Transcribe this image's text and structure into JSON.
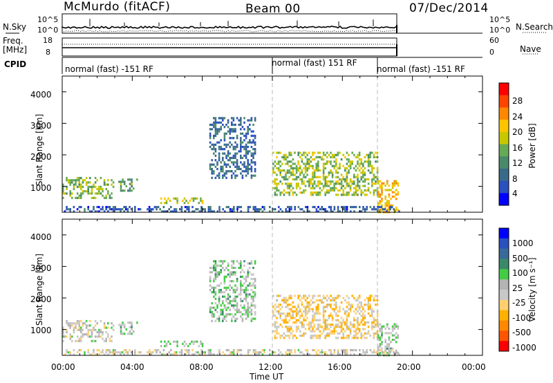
{
  "header": {
    "station": "McMurdo (fitACF)",
    "beam": "Beam 00",
    "date": "07/Dec/2014"
  },
  "aux": {
    "nsky_label": "N.Sky",
    "nsky_ticks": [
      "10^5",
      "10^0"
    ],
    "nsearch_label": "N.Search",
    "nsearch_ticks": [
      "10^5",
      "10^0"
    ],
    "freq_label": "Freq.",
    "freq_unit": "[MHz]",
    "freq_ticks": [
      "18",
      "8"
    ],
    "nave_label": "Nave",
    "nave_ticks": [
      "60",
      "0"
    ],
    "cpid_label": "CPID",
    "cpid_segments": [
      {
        "text": "normal (fast) -151 RF",
        "start_hour": 0
      },
      {
        "text": "normal (fast) 151 RF",
        "start_hour": 12
      },
      {
        "text": "normal (fast) -151 RF",
        "start_hour": 18
      }
    ]
  },
  "chart_data": [
    {
      "type": "heatmap",
      "title": "",
      "xlabel": "",
      "ylabel": "Slant Range [km]",
      "x_range_hours": [
        0,
        24
      ],
      "ylim": [
        180,
        4500
      ],
      "y_ticks": [
        "1000",
        "2000",
        "3000",
        "4000"
      ],
      "colorbar": {
        "label": "Power [dB]",
        "ticks": [
          "28",
          "24",
          "20",
          "16",
          "12",
          "8",
          "4"
        ],
        "range": [
          0,
          30
        ],
        "colors": [
          "#0000ff",
          "#2a52be",
          "#3a6a8a",
          "#4a8a6a",
          "#66aa55",
          "#c8c800",
          "#ffc400",
          "#ff8800",
          "#ff4400",
          "#ff0000"
        ]
      },
      "echo_regions": [
        {
          "t0": 0.0,
          "t1": 2.9,
          "r0": 650,
          "r1": 1300,
          "value": 14
        },
        {
          "t0": 3.2,
          "t1": 4.3,
          "r0": 850,
          "r1": 1250,
          "value": 12
        },
        {
          "t0": 5.6,
          "t1": 8.0,
          "r0": 500,
          "r1": 650,
          "value": 16
        },
        {
          "t0": 8.4,
          "t1": 11.0,
          "r0": 1300,
          "r1": 3200,
          "value": 7
        },
        {
          "t0": 12.0,
          "t1": 18.0,
          "r0": 700,
          "r1": 2100,
          "value": 15
        },
        {
          "t0": 18.0,
          "t1": 19.2,
          "r0": 200,
          "r1": 1200,
          "value": 20
        },
        {
          "t0": 0.0,
          "t1": 19.2,
          "r0": 180,
          "r1": 380,
          "value": 6
        }
      ]
    },
    {
      "type": "heatmap",
      "title": "",
      "xlabel": "Time UT",
      "ylabel": "Slant Range [km]",
      "x_range_hours": [
        0,
        24
      ],
      "ylim": [
        180,
        4500
      ],
      "x_ticks": [
        "00:00",
        "04:00",
        "08:00",
        "12:00",
        "16:00",
        "20:00",
        "00:00"
      ],
      "y_ticks": [
        "1000",
        "2000",
        "3000",
        "4000"
      ],
      "colorbar": {
        "label": "Velocity [m s⁻¹]",
        "ticks": [
          "1000",
          "500",
          "100",
          "25",
          "-25",
          "-100",
          "-500",
          "-1000"
        ],
        "range": [
          -1250,
          1250
        ],
        "colors": [
          "#ff0000",
          "#ff5500",
          "#ff8800",
          "#ffb000",
          "#ffd070",
          "#c8c8c8",
          "#b4b4b4",
          "#44cc44",
          "#3a8a6a",
          "#3a6a9a",
          "#2a52be",
          "#0000ff"
        ]
      },
      "echo_regions": [
        {
          "t0": 0.0,
          "t1": 2.9,
          "r0": 650,
          "r1": 1300,
          "value": -40
        },
        {
          "t0": 3.2,
          "t1": 4.3,
          "r0": 850,
          "r1": 1250,
          "value": 150
        },
        {
          "t0": 5.6,
          "t1": 8.0,
          "r0": 500,
          "r1": 650,
          "value": 120
        },
        {
          "t0": 8.4,
          "t1": 11.0,
          "r0": 1300,
          "r1": 3200,
          "value": 160
        },
        {
          "t0": 12.0,
          "t1": 18.0,
          "r0": 700,
          "r1": 2100,
          "value": -300
        },
        {
          "t0": 18.0,
          "t1": 19.2,
          "r0": 200,
          "r1": 1200,
          "value": 120
        },
        {
          "t0": 0.0,
          "t1": 19.2,
          "r0": 180,
          "r1": 380,
          "value": -60
        }
      ]
    }
  ]
}
